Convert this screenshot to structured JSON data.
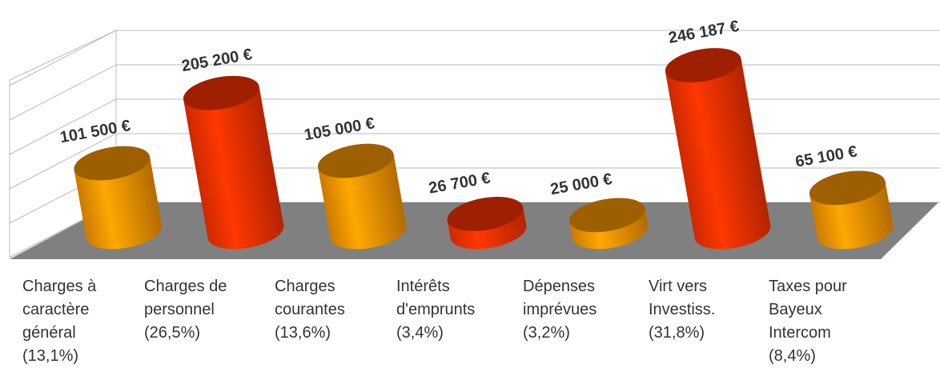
{
  "chart_data": {
    "type": "bar3d",
    "categories": [
      "Charges à\ncaractère\ngénéral\n(13,1%)",
      "Charges de\npersonnel\n(26,5%)",
      "Charges\ncourantes\n(13,6%)",
      "Intérêts\nd'emprunts\n(3,4%)",
      "Dépenses\nimprévues\n(3,2%)",
      "Virt vers\nInvestiss.\n(31,8%)",
      "Taxes pour\nBayeux\nIntercom\n(8,4%)"
    ],
    "values": [
      101500,
      205200,
      105000,
      26700,
      25000,
      246187,
      65100
    ],
    "value_labels": [
      "101 500 €",
      "205 200 €",
      "105 000 €",
      "26 700 €",
      "25 000 €",
      "246 187 €",
      "65 100 €"
    ],
    "colors": [
      "#ff9900",
      "#ff3300",
      "#ff9900",
      "#ff3300",
      "#ff9900",
      "#ff3300",
      "#ff9900"
    ],
    "ylim": [
      0,
      250000
    ],
    "yticks": [
      0,
      50000,
      100000,
      150000,
      200000,
      250000
    ],
    "grid": true
  }
}
